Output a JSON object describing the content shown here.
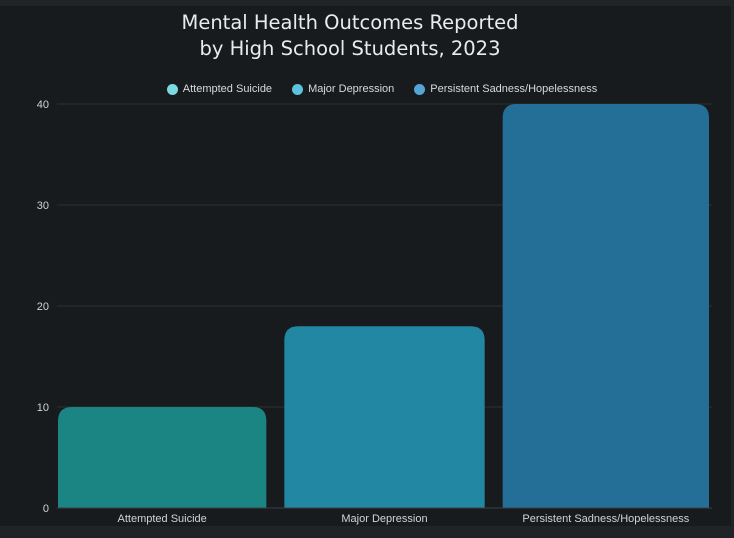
{
  "chart_data": {
    "type": "bar",
    "title_lines": [
      "Mental Health Outcomes Reported",
      "by High School Students, 2023"
    ],
    "categories": [
      "Attempted Suicide",
      "Major Depression",
      "Persistent Sadness/Hopelessness"
    ],
    "values": [
      10,
      18,
      40
    ],
    "colors": [
      "#1b8584",
      "#2287a3",
      "#246f98"
    ],
    "legend": [
      {
        "label": "Attempted Suicide",
        "color": "#7cd9e0"
      },
      {
        "label": "Major Depression",
        "color": "#5cc3dc"
      },
      {
        "label": "Persistent Sadness/Hopelessness",
        "color": "#56a4d6"
      }
    ],
    "legend_position": "top",
    "yticks": [
      0,
      10,
      20,
      30,
      40
    ],
    "ylim": [
      0,
      40
    ],
    "grid": true,
    "xlabel": "",
    "ylabel": ""
  }
}
